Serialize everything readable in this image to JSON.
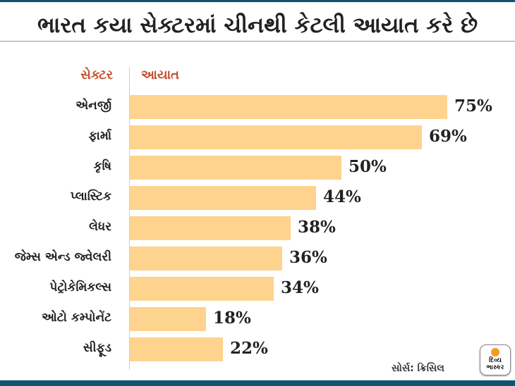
{
  "title": "ભારત કયા સેક્ટરમાં ચીનથી કેટલી આયાત કરે છે",
  "source": "સોર્સ: ક્રિસિલ",
  "logo_text": [
    "દિવ્ય",
    "ભાસ્કર"
  ],
  "colors": {
    "bar": "#fdd38e",
    "header": "#c8502f",
    "brand": "#0f5470"
  },
  "chart_data": {
    "type": "bar",
    "orientation": "horizontal",
    "title": "ભારત કયા સેક્ટરમાં ચીનથી કેટલી આયાત કરે છે",
    "xlabel": "આયાત",
    "ylabel": "સેક્ટર",
    "categories": [
      "એનર્જી",
      "ફાર્મા",
      "કૃષિ",
      "પ્લાસ્ટિક",
      "લેધર",
      "જેમ્સ એન્ડ જ્વેલરી",
      "પેટ્રોકેમિકલ્સ",
      "ઓટો કમ્પોનેંટ",
      "સીફૂડ"
    ],
    "values": [
      75,
      69,
      50,
      44,
      38,
      36,
      34,
      18,
      22
    ],
    "value_labels": [
      "75%",
      "69%",
      "50%",
      "44%",
      "38%",
      "36%",
      "34%",
      "18%",
      "22%"
    ],
    "unit": "%",
    "xlim": [
      0,
      75
    ],
    "grid": false
  }
}
